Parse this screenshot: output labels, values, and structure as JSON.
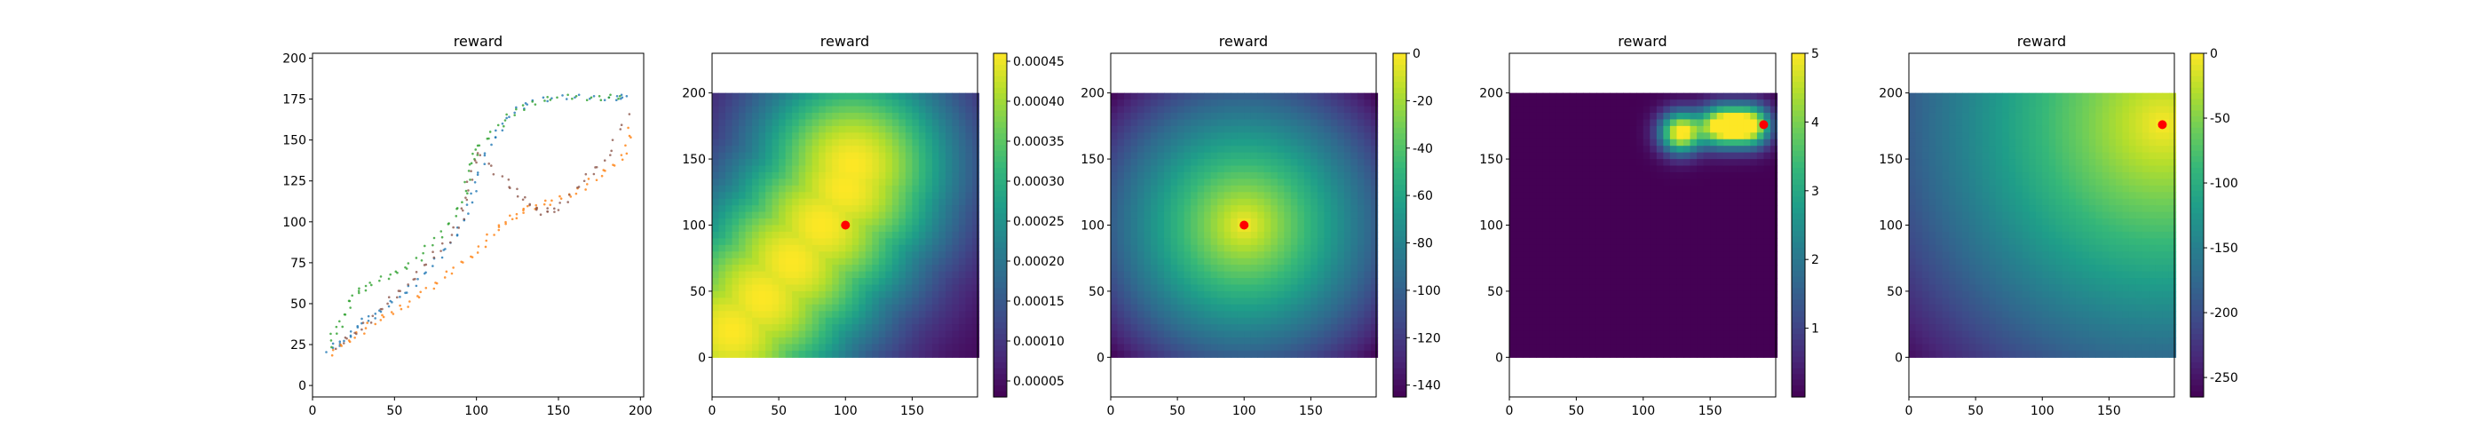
{
  "figure": {
    "background": "#ffffff"
  },
  "chart_data": [
    {
      "type": "scatter",
      "title": "reward",
      "xlim": [
        0,
        202
      ],
      "ylim": [
        -7,
        203
      ],
      "xticks": [
        0,
        50,
        100,
        150,
        200
      ],
      "yticks": [
        0,
        25,
        50,
        75,
        100,
        125,
        150,
        175,
        200
      ],
      "series": [
        {
          "color": "#1f77b4",
          "points": [
            [
              10,
              22
            ],
            [
              20,
              28
            ],
            [
              30,
              38
            ],
            [
              40,
              45
            ],
            [
              55,
              55
            ],
            [
              70,
              70
            ],
            [
              85,
              88
            ],
            [
              95,
              105
            ],
            [
              100,
              128
            ],
            [
              110,
              150
            ],
            [
              120,
              165
            ],
            [
              135,
              175
            ],
            [
              160,
              176
            ],
            [
              185,
              176
            ],
            [
              192,
              176
            ]
          ]
        },
        {
          "color": "#ff7f0e",
          "points": [
            [
              12,
              20
            ],
            [
              25,
              30
            ],
            [
              40,
              40
            ],
            [
              55,
              48
            ],
            [
              70,
              58
            ],
            [
              85,
              70
            ],
            [
              100,
              82
            ],
            [
              112,
              95
            ],
            [
              122,
              103
            ],
            [
              132,
              108
            ],
            [
              145,
              112
            ],
            [
              160,
              118
            ],
            [
              175,
              128
            ],
            [
              190,
              140
            ],
            [
              195,
              160
            ]
          ]
        },
        {
          "color": "#2ca02c",
          "points": [
            [
              10,
              25
            ],
            [
              18,
              40
            ],
            [
              25,
              55
            ],
            [
              35,
              62
            ],
            [
              50,
              68
            ],
            [
              65,
              78
            ],
            [
              80,
              95
            ],
            [
              92,
              112
            ],
            [
              97,
              135
            ],
            [
              100,
              145
            ],
            [
              115,
              160
            ],
            [
              130,
              172
            ],
            [
              150,
              176
            ],
            [
              175,
              176
            ],
            [
              190,
              176
            ]
          ]
        },
        {
          "color": "#8c564b",
          "points": [
            [
              15,
              24
            ],
            [
              30,
              35
            ],
            [
              45,
              50
            ],
            [
              60,
              64
            ],
            [
              75,
              80
            ],
            [
              90,
              98
            ],
            [
              95,
              120
            ],
            [
              100,
              142
            ],
            [
              118,
              125
            ],
            [
              130,
              112
            ],
            [
              140,
              106
            ],
            [
              150,
              108
            ],
            [
              165,
              125
            ],
            [
              180,
              140
            ],
            [
              194,
              170
            ]
          ]
        }
      ]
    },
    {
      "type": "heatmap",
      "title": "reward",
      "xlim": [
        0,
        199
      ],
      "ylim": [
        -30,
        230
      ],
      "xticks": [
        0,
        50,
        100,
        150
      ],
      "yticks": [
        0,
        50,
        100,
        150,
        200
      ],
      "extent": [
        0,
        200,
        0,
        200
      ],
      "colorbar": {
        "min": 3e-05,
        "max": 0.00046,
        "ticks": [
          "0.00005",
          "0.00010",
          "0.00015",
          "0.00020",
          "0.00025",
          "0.00030",
          "0.00035",
          "0.00040",
          "0.00045"
        ],
        "tick_values": [
          5e-05,
          0.0001,
          0.00015,
          0.0002,
          0.00025,
          0.0003,
          0.00035,
          0.0004,
          0.00045
        ]
      },
      "marker": [
        100,
        100
      ],
      "field": {
        "kind": "path_gaussian",
        "centers": [
          [
            15,
            20
          ],
          [
            38,
            45
          ],
          [
            60,
            72
          ],
          [
            82,
            100
          ],
          [
            100,
            128
          ],
          [
            105,
            145
          ]
        ],
        "sigma": 58
      }
    },
    {
      "type": "heatmap",
      "title": "reward",
      "xlim": [
        0,
        199
      ],
      "ylim": [
        -30,
        230
      ],
      "xticks": [
        0,
        50,
        100,
        150
      ],
      "yticks": [
        0,
        50,
        100,
        150,
        200
      ],
      "extent": [
        0,
        200,
        0,
        200
      ],
      "colorbar": {
        "min": -145,
        "max": 0,
        "ticks": [
          "0",
          "-20",
          "-40",
          "-60",
          "-80",
          "-100",
          "-120",
          "-140"
        ],
        "tick_values": [
          0,
          -20,
          -40,
          -60,
          -80,
          -100,
          -120,
          -140
        ]
      },
      "marker": [
        100,
        100
      ],
      "field": {
        "kind": "neg_distance",
        "center": [
          100,
          100
        ],
        "sigma": 100
      }
    },
    {
      "type": "heatmap",
      "title": "reward",
      "xlim": [
        0,
        199
      ],
      "ylim": [
        -30,
        230
      ],
      "xticks": [
        0,
        50,
        100,
        150
      ],
      "yticks": [
        0,
        50,
        100,
        150,
        200
      ],
      "extent": [
        0,
        200,
        0,
        200
      ],
      "colorbar": {
        "min": 0,
        "max": 5,
        "ticks": [
          "1",
          "2",
          "3",
          "4",
          "5"
        ],
        "tick_values": [
          1,
          2,
          3,
          4,
          5
        ]
      },
      "marker": [
        190,
        176
      ],
      "field": {
        "kind": "gaussian_blobs",
        "centers": [
          [
            128,
            170
          ],
          [
            158,
            175
          ],
          [
            180,
            175
          ]
        ],
        "sigma": 11,
        "amplitude": 5.2
      }
    },
    {
      "type": "heatmap",
      "title": "reward",
      "xlim": [
        0,
        199
      ],
      "ylim": [
        -30,
        230
      ],
      "xticks": [
        0,
        50,
        100,
        150
      ],
      "yticks": [
        0,
        50,
        100,
        150,
        200
      ],
      "extent": [
        0,
        200,
        0,
        200
      ],
      "colorbar": {
        "min": -265,
        "max": 0,
        "ticks": [
          "0",
          "-50",
          "-100",
          "-150",
          "-200",
          "-250"
        ],
        "tick_values": [
          0,
          -50,
          -100,
          -150,
          -200,
          -250
        ]
      },
      "marker": [
        190,
        176
      ],
      "field": {
        "kind": "neg_distance",
        "center": [
          190,
          176
        ],
        "sigma": 190
      }
    }
  ]
}
